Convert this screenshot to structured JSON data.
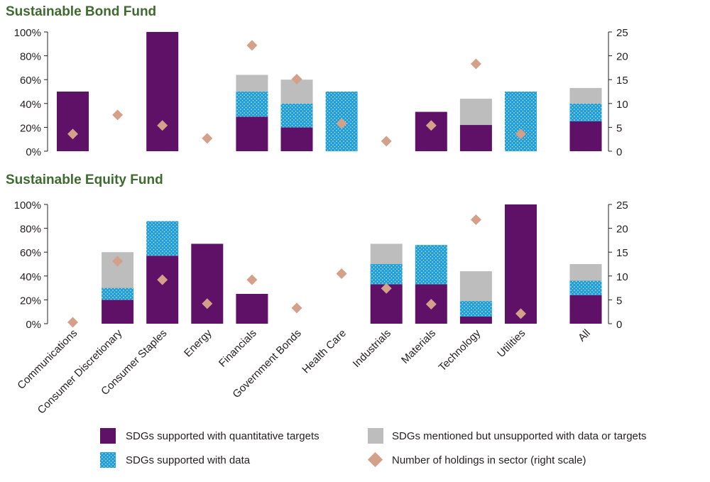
{
  "colors": {
    "quant": "#5e1166",
    "data": "#1f9fd6",
    "mentioned": "#bdbdbd",
    "holdings": "#d4a08a",
    "title": "#3d6b2e",
    "axis": "#231f20"
  },
  "categories": [
    "Communications",
    "Consumer Discretionary",
    "Consumer Staples",
    "Energy",
    "Financials",
    "Government Bonds",
    "Health Care",
    "Industrials",
    "Materials",
    "Technology",
    "Utilities",
    "All"
  ],
  "legend": {
    "quant": "SDGs supported with quantitative targets",
    "mentioned": "SDGs mentioned but unsupported with data or targets",
    "data": "SDGs supported with data",
    "holdings": "Number of holdings in sector (right scale)"
  },
  "chart_data": [
    {
      "type": "bar",
      "stacked": true,
      "title": "Sustainable Bond Fund",
      "categories": [
        "Communications",
        "Consumer Discretionary",
        "Consumer Staples",
        "Energy",
        "Financials",
        "Government Bonds",
        "Health Care",
        "Industrials",
        "Materials",
        "Technology",
        "Utilities",
        "All"
      ],
      "left_ticks": [
        "0%",
        "20%",
        "40%",
        "60%",
        "80%",
        "100%"
      ],
      "right_ticks": [
        "0",
        "5",
        "10",
        "15",
        "20",
        "25"
      ],
      "ylim": [
        0,
        100
      ],
      "y2lim": [
        0,
        25
      ],
      "series": [
        {
          "name": "SDGs supported with quantitative targets",
          "values": [
            50,
            0,
            100,
            0,
            29,
            20,
            0,
            0,
            33,
            22,
            0,
            25
          ]
        },
        {
          "name": "SDGs supported with data",
          "values": [
            0,
            0,
            0,
            0,
            21,
            20,
            50,
            0,
            0,
            0,
            50,
            15
          ]
        },
        {
          "name": "SDGs mentioned but unsupported with data or targets",
          "values": [
            0,
            0,
            0,
            0,
            14,
            20,
            0,
            0,
            0,
            22,
            0,
            13
          ]
        }
      ],
      "holdings": [
        3.6,
        7.6,
        5.4,
        2.7,
        22.2,
        15.1,
        5.8,
        2.1,
        5.4,
        18.3,
        3.6,
        null
      ]
    },
    {
      "type": "bar",
      "stacked": true,
      "title": "Sustainable Equity Fund",
      "categories": [
        "Communications",
        "Consumer Discretionary",
        "Consumer Staples",
        "Energy",
        "Financials",
        "Government Bonds",
        "Health Care",
        "Industrials",
        "Materials",
        "Technology",
        "Utilities",
        "All"
      ],
      "left_ticks": [
        "0%",
        "20%",
        "40%",
        "60%",
        "80%",
        "100%"
      ],
      "right_ticks": [
        "0",
        "5",
        "10",
        "15",
        "20",
        "25"
      ],
      "ylim": [
        0,
        100
      ],
      "y2lim": [
        0,
        25
      ],
      "series": [
        {
          "name": "SDGs supported with quantitative targets",
          "values": [
            0,
            20,
            57,
            67,
            25,
            0,
            0,
            33,
            33,
            6,
            100,
            24
          ]
        },
        {
          "name": "SDGs supported with data",
          "values": [
            0,
            10,
            29,
            0,
            0,
            0,
            0,
            17,
            33,
            13,
            0,
            12
          ]
        },
        {
          "name": "SDGs mentioned but unsupported with data or targets",
          "values": [
            0,
            30,
            0,
            0,
            0,
            0,
            0,
            17,
            0,
            25,
            0,
            14
          ]
        }
      ],
      "holdings": [
        0.3,
        13.1,
        9.2,
        4.2,
        9.2,
        3.3,
        10.5,
        7.4,
        4.1,
        21.8,
        2.1,
        null
      ]
    }
  ]
}
